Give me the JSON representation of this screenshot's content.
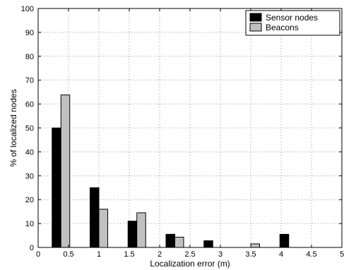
{
  "chart_data": {
    "type": "bar",
    "title": "",
    "xlabel": "Localization error (m)",
    "ylabel": "% of localized nodes",
    "xlim": [
      0,
      5
    ],
    "ylim": [
      0,
      100
    ],
    "xticks": [
      "0",
      "0.5",
      "1",
      "1.5",
      "2",
      "2.5",
      "3",
      "3.5",
      "4",
      "4.5",
      "5"
    ],
    "yticks": [
      "0",
      "10",
      "20",
      "30",
      "40",
      "50",
      "60",
      "70",
      "80",
      "90",
      "100"
    ],
    "categories": [
      0.375,
      1.0,
      1.625,
      2.25,
      2.875,
      3.5,
      4.125
    ],
    "grid": true,
    "legend_position": "top-right",
    "series": [
      {
        "name": "Sensor nodes",
        "color": "#000000",
        "values": [
          50,
          25,
          11,
          5.5,
          2.8,
          0,
          5.5
        ]
      },
      {
        "name": "Beacons",
        "color": "#c0c0c0",
        "values": [
          63.8,
          16,
          14.5,
          4.3,
          0,
          1.5,
          0
        ]
      }
    ]
  }
}
